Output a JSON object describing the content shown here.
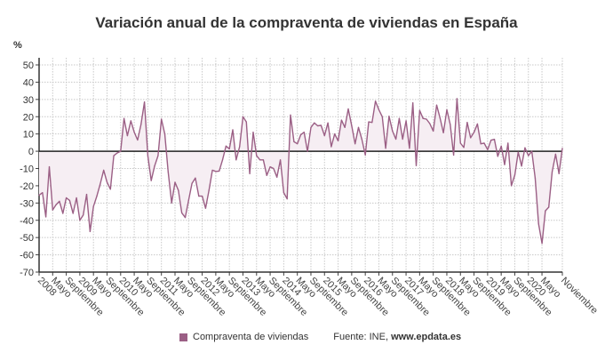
{
  "chart_data": {
    "type": "line",
    "title": "Variación anual de la compraventa de viviendas en España",
    "ylabel": "%",
    "xlabel": "",
    "ylim": [
      -70,
      50
    ],
    "yticks": [
      50,
      40,
      30,
      20,
      10,
      0,
      -10,
      -20,
      -30,
      -40,
      -50,
      -60,
      -70
    ],
    "grid": true,
    "x_start": "2008-01",
    "x_end": "2020-11",
    "x_frequency": "monthly",
    "x_ticks": [
      {
        "at": "2008-01",
        "label": "2008"
      },
      {
        "at": "2008-05",
        "label": "Mayo"
      },
      {
        "at": "2008-09",
        "label": "Septiembre"
      },
      {
        "at": "2009-01",
        "label": "2009"
      },
      {
        "at": "2009-05",
        "label": "Mayo"
      },
      {
        "at": "2009-09",
        "label": "Septiembre"
      },
      {
        "at": "2010-01",
        "label": "2010"
      },
      {
        "at": "2010-05",
        "label": "Mayo"
      },
      {
        "at": "2010-09",
        "label": "Septiembre"
      },
      {
        "at": "2011-01",
        "label": "2011"
      },
      {
        "at": "2011-05",
        "label": "Mayo"
      },
      {
        "at": "2011-09",
        "label": "Septiembre"
      },
      {
        "at": "2012-01",
        "label": "2012"
      },
      {
        "at": "2012-05",
        "label": "Mayo"
      },
      {
        "at": "2012-09",
        "label": "Septiembre"
      },
      {
        "at": "2013-01",
        "label": "2013"
      },
      {
        "at": "2013-05",
        "label": "Mayo"
      },
      {
        "at": "2013-09",
        "label": "Septiembre"
      },
      {
        "at": "2014-01",
        "label": "2014"
      },
      {
        "at": "2014-05",
        "label": "Mayo"
      },
      {
        "at": "2014-09",
        "label": "Septiembre"
      },
      {
        "at": "2015-01",
        "label": "2015"
      },
      {
        "at": "2015-05",
        "label": "Mayo"
      },
      {
        "at": "2015-09",
        "label": "Septiembre"
      },
      {
        "at": "2016-01",
        "label": "2016"
      },
      {
        "at": "2016-05",
        "label": "Mayo"
      },
      {
        "at": "2016-09",
        "label": "Septiembre"
      },
      {
        "at": "2017-01",
        "label": "2017"
      },
      {
        "at": "2017-05",
        "label": "Mayo"
      },
      {
        "at": "2017-09",
        "label": "Septiembre"
      },
      {
        "at": "2018-01",
        "label": "2018"
      },
      {
        "at": "2018-05",
        "label": "Mayo"
      },
      {
        "at": "2018-09",
        "label": "Septiembre"
      },
      {
        "at": "2019-01",
        "label": "2019"
      },
      {
        "at": "2019-05",
        "label": "Mayo"
      },
      {
        "at": "2019-09",
        "label": "Septiembre"
      },
      {
        "at": "2020-01",
        "label": "2020"
      },
      {
        "at": "2020-05",
        "label": "Mayo"
      },
      {
        "at": "2020-11",
        "label": "Noviembre"
      }
    ],
    "series": [
      {
        "name": "Compraventa de viviendas",
        "color": "#9b5f85",
        "fill": "#f6eef3",
        "values": [
          -25.5,
          -24,
          -38,
          -9,
          -34,
          -31,
          -29,
          -36,
          -27,
          -28.5,
          -36,
          -27,
          -40,
          -37,
          -25,
          -46.5,
          -32,
          -26,
          -19,
          -11,
          -18,
          -22,
          -2.6,
          -1,
          0,
          19,
          9,
          17.6,
          11,
          6.5,
          15.5,
          28.5,
          -2.6,
          -17,
          -8.6,
          -2.6,
          18.6,
          10,
          -12,
          -30,
          -18,
          -22.7,
          -35.7,
          -38.4,
          -28.4,
          -18.6,
          -15.5,
          -26,
          -26,
          -33,
          -22.7,
          -11,
          -11.7,
          -11.5,
          -5,
          3,
          1.4,
          12.4,
          -5,
          2.6,
          20,
          17,
          -13,
          11,
          -2.6,
          -5,
          -5,
          -14,
          -9,
          -10,
          -15,
          -5,
          -24,
          -27.6,
          21,
          5.5,
          4.3,
          9.5,
          11,
          0,
          13.8,
          16.4,
          14.7,
          15,
          9,
          16.4,
          2.6,
          10,
          6,
          18,
          13.8,
          24.5,
          14.7,
          4.3,
          13.8,
          7,
          -2.2,
          17,
          16.7,
          29,
          24,
          20,
          1.7,
          20.3,
          11.7,
          7,
          19,
          7,
          17.6,
          1.7,
          28,
          -8.3,
          23.6,
          19,
          18.6,
          16,
          11.7,
          26.7,
          19.3,
          10.7,
          24,
          15.5,
          -2.2,
          30.5,
          4.7,
          2.2,
          16.7,
          7.8,
          11,
          15.8,
          4.3,
          4.7,
          0.9,
          6.4,
          6.9,
          -3,
          3,
          -7.8,
          4.7,
          -20,
          -13.8,
          -0.5,
          -8.6,
          2,
          -2.6,
          0,
          -15.5,
          -42,
          -53.4,
          -34.5,
          -32.4,
          -12,
          -1.7,
          -13,
          1.7
        ]
      }
    ],
    "legend": "bottom"
  },
  "source": {
    "prefix": "Fuente: INE, ",
    "site": "www.epdata.es"
  }
}
